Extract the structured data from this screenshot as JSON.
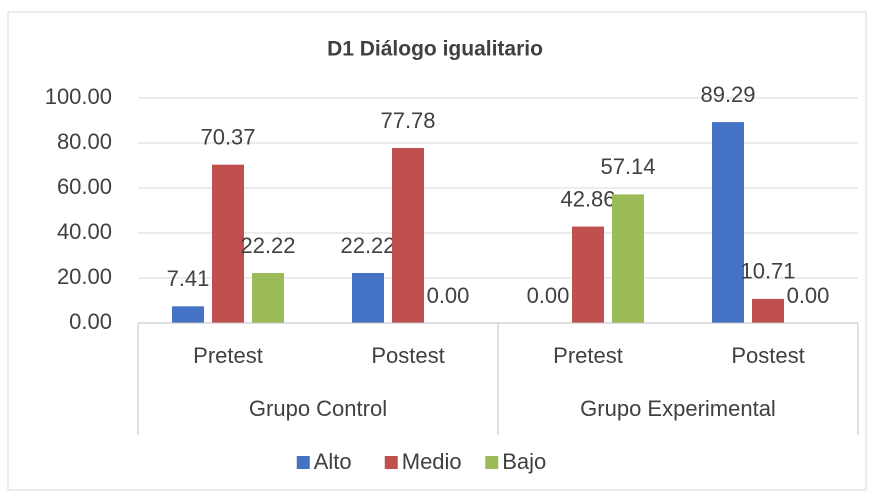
{
  "chart_data": {
    "type": "bar",
    "title": "D1 Diálogo igualitario",
    "groups": [
      {
        "label": "Grupo Control",
        "categories": [
          "Pretest",
          "Postest"
        ]
      },
      {
        "label": "Grupo Experimental",
        "categories": [
          "Pretest",
          "Postest"
        ]
      }
    ],
    "series": [
      {
        "name": "Alto",
        "color": "#4472c4",
        "values": [
          7.41,
          22.22,
          0,
          89.29
        ],
        "value_labels": [
          "7.41",
          "22.22",
          "0.00",
          "89.29"
        ]
      },
      {
        "name": "Medio",
        "color": "#c0504d",
        "values": [
          70.37,
          77.78,
          42.86,
          10.71
        ],
        "value_labels": [
          "70.37",
          "77.78",
          "42.86",
          "10.71"
        ]
      },
      {
        "name": "Bajo",
        "color": "#9bbb59",
        "values": [
          22.22,
          0,
          57.14,
          0
        ],
        "value_labels": [
          "22.22",
          "0.00",
          "57.14",
          "0.00"
        ]
      }
    ],
    "ylim": [
      0,
      100
    ],
    "yticks": [
      {
        "value": 0,
        "label": "0.00"
      },
      {
        "value": 20,
        "label": "20.00"
      },
      {
        "value": 40,
        "label": "40.00"
      },
      {
        "value": 60,
        "label": "60.00"
      },
      {
        "value": 80,
        "label": "80.00"
      },
      {
        "value": 100,
        "label": "100.00"
      }
    ],
    "grid": true,
    "legend": "bottom"
  }
}
